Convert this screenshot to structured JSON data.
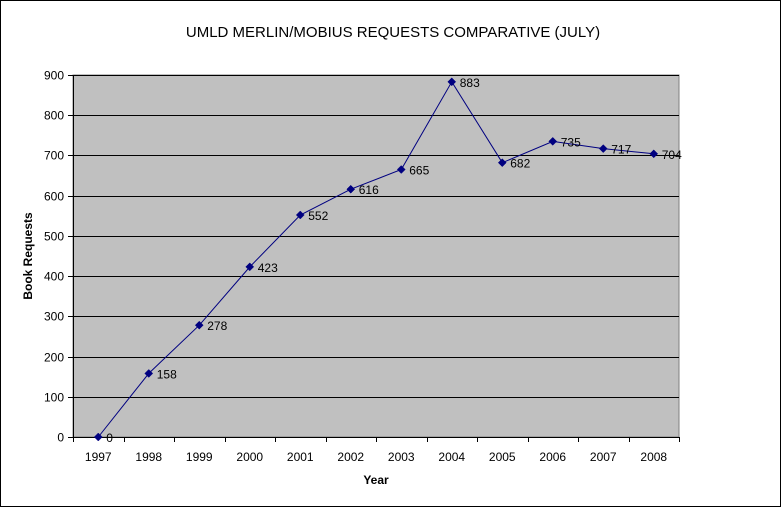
{
  "chart_data": {
    "type": "line",
    "title": "UMLD MERLIN/MOBIUS REQUESTS COMPARATIVE (JULY)",
    "xlabel": "Year",
    "ylabel": "Book Requests",
    "categories": [
      "1997",
      "1998",
      "1999",
      "2000",
      "2001",
      "2002",
      "2003",
      "2004",
      "2005",
      "2006",
      "2007",
      "2008"
    ],
    "series": [
      {
        "values": [
          0,
          158,
          278,
          423,
          552,
          616,
          665,
          883,
          682,
          735,
          717,
          704
        ],
        "labels": [
          "0",
          "158",
          "278",
          "423",
          "552",
          "616",
          "665",
          "883",
          "682",
          "735",
          "717",
          "704"
        ],
        "color": "#000080",
        "marker": "diamond"
      }
    ],
    "ylim": [
      0,
      900
    ],
    "yticks": [
      0,
      100,
      200,
      300,
      400,
      500,
      600,
      700,
      800,
      900
    ],
    "ytick_labels": [
      "0",
      "100",
      "200",
      "300",
      "400",
      "500",
      "600",
      "700",
      "800",
      "900"
    ],
    "grid": true,
    "legend": "none",
    "plot_background": "#c0c0c0",
    "gridline_color": "#000000"
  }
}
